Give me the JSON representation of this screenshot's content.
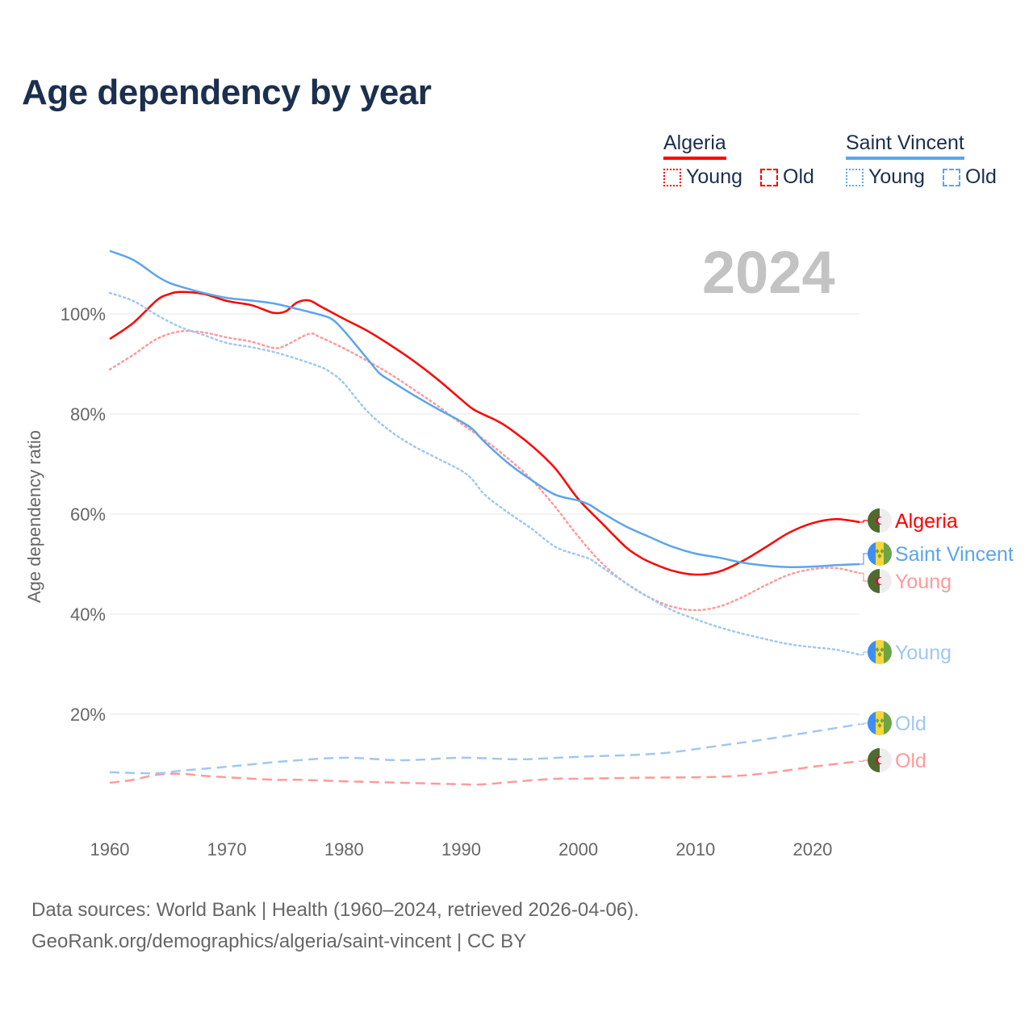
{
  "title": "Age dependency by year",
  "current_year": "2024",
  "legend": {
    "groups": [
      {
        "name": "Algeria",
        "color": "#ff0000",
        "items": [
          "Young",
          "Old"
        ]
      },
      {
        "name": "Saint Vincent",
        "color": "#5ca5ec",
        "items": [
          "Young",
          "Old"
        ]
      }
    ]
  },
  "footer": {
    "line1": "Data sources: World Bank | Health (1960–2024, retrieved 2026-04-06).",
    "line2": "GeoRank.org/demographics/algeria/saint-vincent | CC BY"
  },
  "chart_data": {
    "type": "line",
    "title": "Age dependency by year",
    "xlabel": "",
    "ylabel": "Age dependency ratio",
    "xlim": [
      1960,
      2024
    ],
    "ylim": [
      0,
      115
    ],
    "xticks": [
      1960,
      1970,
      1980,
      1990,
      2000,
      2010,
      2020
    ],
    "xtick_labels": [
      "1960",
      "1970",
      "1980",
      "1990",
      "2000",
      "2010",
      "2020"
    ],
    "yticks": [
      20,
      40,
      60,
      80,
      100
    ],
    "ytick_labels": [
      "20%",
      "40%",
      "60%",
      "80%",
      "100%"
    ],
    "grid": true,
    "series": [
      {
        "name": "Algeria",
        "end_label": "Algeria",
        "country": "algeria",
        "color": "#ff0000",
        "style": "solid",
        "x": [
          1960,
          1962,
          1964,
          1965,
          1966,
          1968,
          1970,
          1972,
          1973,
          1974,
          1975,
          1976,
          1977,
          1978,
          1980,
          1982,
          1984,
          1986,
          1988,
          1990,
          1991,
          1992,
          1993,
          1994,
          1996,
          1998,
          2000,
          2002,
          2004,
          2005,
          2006,
          2008,
          2010,
          2012,
          2014,
          2016,
          2018,
          2020,
          2022,
          2024
        ],
        "y": [
          95,
          98.2,
          102.7,
          103.9,
          104.4,
          104,
          102.6,
          101.8,
          101,
          100.2,
          100.5,
          102.3,
          102.7,
          101.5,
          99,
          96.6,
          93.7,
          90.5,
          86.9,
          82.9,
          81,
          79.8,
          78.7,
          77.3,
          73.7,
          69.2,
          63,
          58.2,
          53.5,
          51.8,
          50.5,
          48.7,
          47.9,
          48.5,
          50.6,
          53.4,
          56.3,
          58.2,
          59,
          58.4
        ]
      },
      {
        "name": "Algeria Young",
        "end_label": "Young",
        "country": "algeria",
        "color": "#ff9a9a",
        "style": "dotted",
        "x": [
          1960,
          1962,
          1964,
          1966,
          1968,
          1970,
          1972,
          1974,
          1975,
          1977,
          1978,
          1980,
          1982,
          1984,
          1986,
          1988,
          1990,
          1992,
          1994,
          1996,
          1998,
          2000,
          2002,
          2004,
          2006,
          2008,
          2010,
          2012,
          2014,
          2016,
          2018,
          2020,
          2022,
          2024
        ],
        "y": [
          88.9,
          91.8,
          95,
          96.5,
          96.3,
          95.3,
          94.5,
          93.2,
          93.7,
          96,
          95.3,
          93.1,
          90.6,
          87.9,
          84.8,
          81.6,
          78.1,
          74.8,
          71.1,
          66.9,
          61.5,
          55.5,
          50.2,
          46.3,
          43.4,
          41.5,
          40.8,
          41.5,
          43.4,
          45.8,
          47.9,
          49,
          49.2,
          48.2
        ]
      },
      {
        "name": "Algeria Old",
        "end_label": "Old",
        "country": "algeria",
        "color": "#ff9a9a",
        "style": "dashed",
        "x": [
          1960,
          1962,
          1964,
          1966,
          1968,
          1970,
          1974,
          1976,
          1980,
          1985,
          1990,
          1992,
          1995,
          1998,
          2000,
          2005,
          2010,
          2013,
          2016,
          2020,
          2024
        ],
        "y": [
          6.3,
          6.9,
          7.9,
          8.1,
          7.7,
          7.4,
          6.9,
          6.9,
          6.6,
          6.3,
          6,
          6,
          6.6,
          7.1,
          7.1,
          7.3,
          7.4,
          7.6,
          8.2,
          9.5,
          10.6
        ]
      },
      {
        "name": "Saint Vincent",
        "end_label": "Saint Vincent",
        "country": "saint-vincent",
        "color": "#5ca5ec",
        "style": "solid",
        "x": [
          1960,
          1962,
          1964,
          1965,
          1966,
          1968,
          1970,
          1972,
          1974,
          1976,
          1978,
          1979,
          1980,
          1982,
          1983,
          1984,
          1986,
          1988,
          1990,
          1991,
          1992,
          1994,
          1996,
          1998,
          2000,
          2001,
          2002,
          2004,
          2006,
          2008,
          2010,
          2012,
          2014,
          2016,
          2018,
          2020,
          2022,
          2024
        ],
        "y": [
          112.6,
          110.8,
          107.6,
          106.3,
          105.5,
          104.2,
          103.2,
          102.7,
          102.1,
          101,
          99.8,
          98.9,
          96.6,
          91,
          88.2,
          86.6,
          83.7,
          81,
          78.5,
          76.9,
          74.4,
          70.2,
          66.8,
          63.9,
          62.7,
          61.8,
          60.3,
          57.6,
          55.5,
          53.5,
          52.1,
          51.3,
          50.3,
          49.7,
          49.4,
          49.5,
          49.8,
          50
        ]
      },
      {
        "name": "Saint Vincent Young",
        "end_label": "Young",
        "country": "saint-vincent",
        "color": "#9fc8f2",
        "style": "dotted",
        "x": [
          1960,
          1962,
          1964,
          1966,
          1968,
          1970,
          1972,
          1974,
          1976,
          1978,
          1979,
          1980,
          1982,
          1984,
          1986,
          1988,
          1990,
          1991,
          1992,
          1994,
          1996,
          1998,
          2000,
          2001,
          2002,
          2004,
          2006,
          2008,
          2010,
          2012,
          2014,
          2016,
          2018,
          2020,
          2022,
          2024
        ],
        "y": [
          104.2,
          102.6,
          99.8,
          97.4,
          95.8,
          94.2,
          93.4,
          92.4,
          91,
          89.4,
          88.1,
          86.1,
          80.5,
          76.5,
          73.5,
          71.1,
          68.7,
          66.8,
          63.9,
          60.3,
          57.1,
          53.5,
          51.8,
          51,
          49.4,
          46.3,
          43.4,
          40.8,
          39,
          37.4,
          36.1,
          35,
          34,
          33.4,
          32.9,
          31.9
        ]
      },
      {
        "name": "Saint Vincent Old",
        "end_label": "Old",
        "country": "saint-vincent",
        "color": "#9fc8f2",
        "style": "dashed",
        "x": [
          1960,
          1964,
          1966,
          1970,
          1975,
          1980,
          1985,
          1990,
          1995,
          2000,
          2005,
          2008,
          2012,
          2016,
          2020,
          2024
        ],
        "y": [
          8.4,
          8.2,
          8.7,
          9.5,
          10.6,
          11.3,
          10.8,
          11.3,
          11,
          11.5,
          11.9,
          12.4,
          13.7,
          15,
          16.5,
          18
        ]
      }
    ]
  }
}
